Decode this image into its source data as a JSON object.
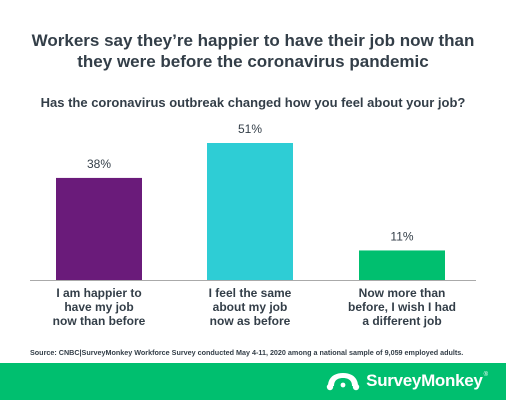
{
  "header": {
    "title_line1": "Workers say they’re happier to have their job now than",
    "title_line2": "they were before the coronavirus pandemic",
    "question": "Has the coronavirus outbreak changed how you feel about your job?"
  },
  "chart_data": {
    "type": "bar",
    "title": "Workers say they’re happier to have their job now than they were before the coronavirus pandemic",
    "subtitle": "Has the coronavirus outbreak changed how you feel about your job?",
    "categories": [
      [
        "I am happier to",
        "have my job",
        "now than before"
      ],
      [
        "I feel the same",
        "about my job",
        "now as before"
      ],
      [
        "Now more than",
        "before, I wish I had",
        "a different job"
      ]
    ],
    "values": [
      38,
      51,
      11
    ],
    "value_labels": [
      "38%",
      "51%",
      "11%"
    ],
    "colors": [
      "#6a1b7a",
      "#2ecdd5",
      "#00bf6f"
    ],
    "ylim": [
      0,
      100
    ],
    "grid": false,
    "xlabel": "",
    "ylabel": ""
  },
  "source": "Source: CNBC|SurveyMonkey Workforce Survey conducted May 4-11, 2020 among a national sample of 9,059 employed adults.",
  "footer": {
    "brand": "SurveyMonkey",
    "trademark": "®",
    "background": "#00bf6f",
    "logo_icon": "surveymonkey-logo-icon"
  }
}
